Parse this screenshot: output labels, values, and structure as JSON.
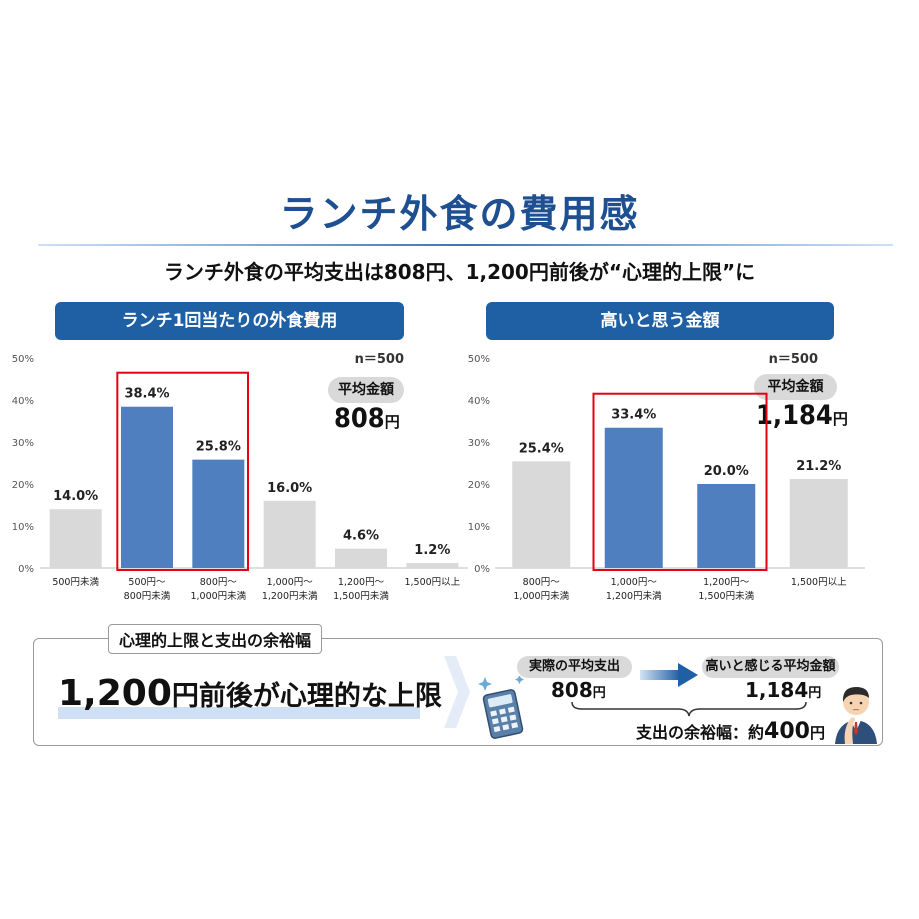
{
  "title": "ランチ外食の費用感",
  "subtitle": "ランチ外食の平均支出は808円、1,200円前後が“心理的上限”に",
  "colors": {
    "highlight_bar": "#4f7fbf",
    "normal_bar": "#d9d9d9",
    "highlight_box": "#e60012",
    "header_bg": "#1f5fa3"
  },
  "chart_data": [
    {
      "type": "bar",
      "title": "ランチ1回当たりの外食費用",
      "n_label": "n＝500",
      "average": {
        "label": "平均金額",
        "value": "808",
        "unit": "円"
      },
      "categories": [
        [
          "500円未満"
        ],
        [
          "500円～",
          "800円未満"
        ],
        [
          "800円～",
          "1,000円未満"
        ],
        [
          "1,000円～",
          "1,200円未満"
        ],
        [
          "1,200円～",
          "1,500円未満"
        ],
        [
          "1,500円以上"
        ]
      ],
      "values": [
        14.0,
        38.4,
        25.8,
        16.0,
        4.6,
        1.2
      ],
      "data_labels": [
        "14.0%",
        "38.4%",
        "25.8%",
        "16.0%",
        "4.6%",
        "1.2%"
      ],
      "highlighted": [
        false,
        true,
        true,
        false,
        false,
        false
      ],
      "y_ticks": [
        "0%",
        "10%",
        "20%",
        "30%",
        "40%",
        "50%"
      ],
      "ylim": [
        0,
        50
      ],
      "grid": false
    },
    {
      "type": "bar",
      "title": "高いと思う金額",
      "n_label": "n＝500",
      "average": {
        "label": "平均金額",
        "value": "1,184",
        "unit": "円"
      },
      "categories": [
        [
          "800円～",
          "1,000円未満"
        ],
        [
          "1,000円～",
          "1,200円未満"
        ],
        [
          "1,200円～",
          "1,500円未満"
        ],
        [
          "1,500円以上"
        ]
      ],
      "values": [
        25.4,
        33.4,
        20.0,
        21.2
      ],
      "data_labels": [
        "25.4%",
        "33.4%",
        "20.0%",
        "21.2%"
      ],
      "highlighted": [
        false,
        true,
        true,
        false
      ],
      "y_ticks": [
        "0%",
        "10%",
        "20%",
        "30%",
        "40%",
        "50%"
      ],
      "ylim": [
        0,
        50
      ],
      "grid": false
    }
  ],
  "summary": {
    "box_label": "心理的上限と支出の余裕幅",
    "headline_number": "1,200",
    "headline_rest": "円前後が心理的な上限",
    "actual_label": "実際の平均支出",
    "actual_value": "808",
    "actual_unit": "円",
    "perceived_label": "高いと感じる平均金額",
    "perceived_value": "1,184",
    "perceived_unit": "円",
    "margin_label": "支出の余裕幅：約",
    "margin_value": "400",
    "margin_unit": "円",
    "icons": [
      "calculator-icon",
      "thinking-person-icon",
      "arrow-right-icon",
      "chevron-right-icon"
    ]
  }
}
